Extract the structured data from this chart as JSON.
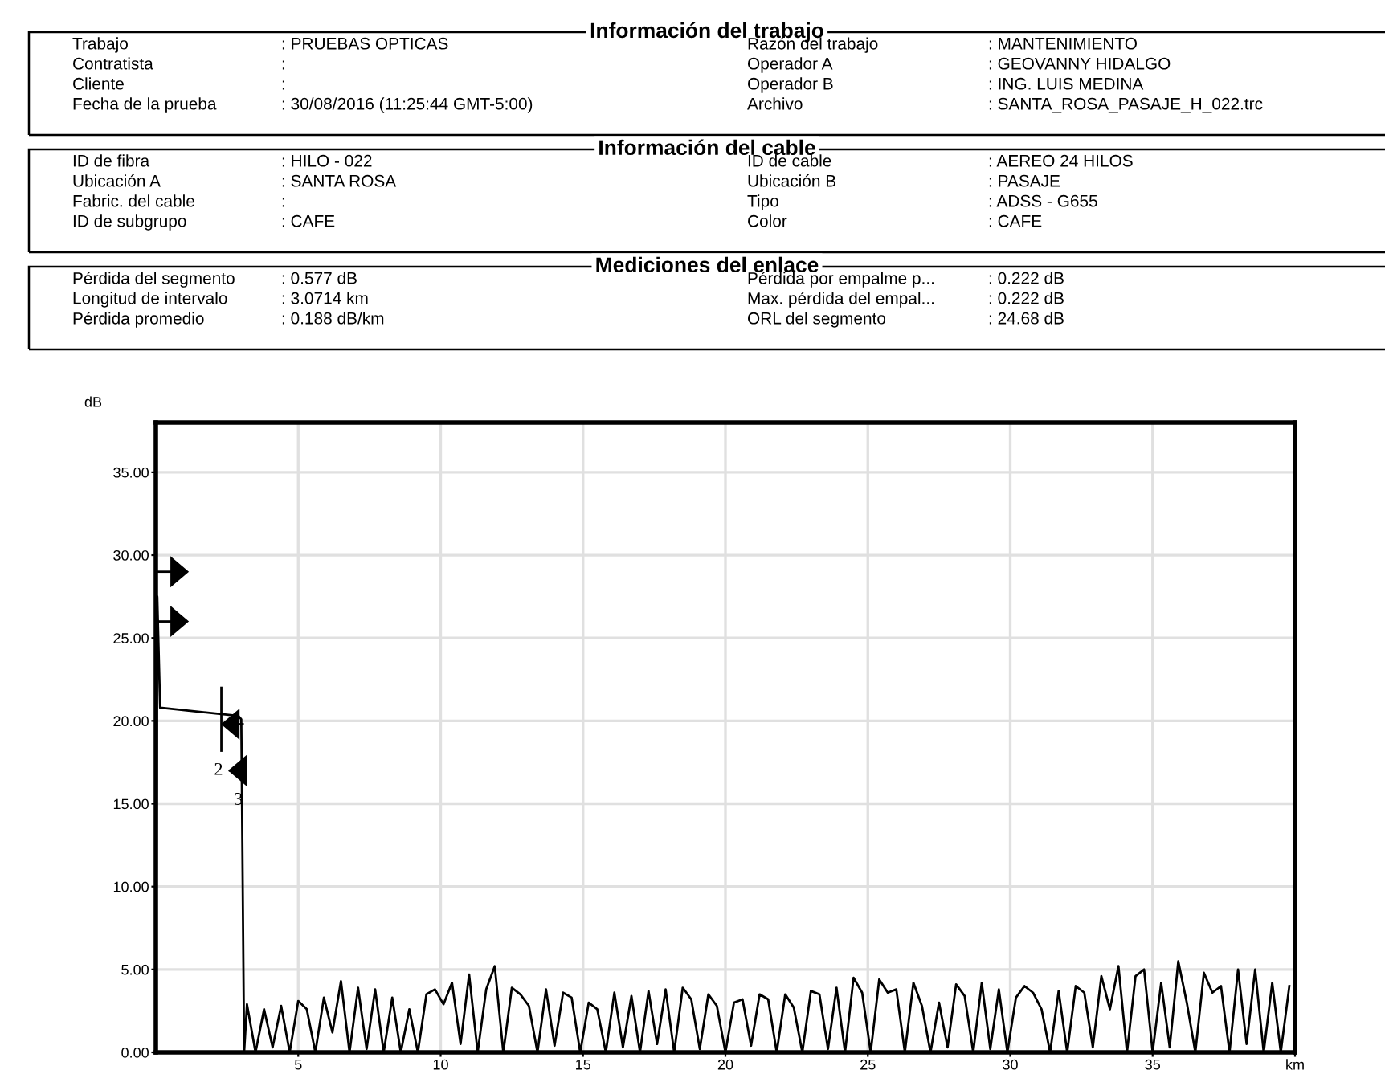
{
  "chart_data": {
    "type": "line",
    "ylabel": "dB",
    "annotations": [
      "Información del trabajo",
      "Trabajo",
      ": PRUEBAS OPTICAS",
      "Razón del trabajo",
      ": MANTENIMIENTO",
      "Contratista",
      ":",
      "Operador A",
      ": GEOVANNY HIDALGO",
      "Cliente",
      ":",
      "Operador B",
      ": ING. LUIS MEDINA",
      "Fecha de la prueba",
      ": 30/08/2016 (11:25:44 GMT-5:00)",
      "Archivo",
      ": SANTA_ROSA_PASAJE_H_022.trc",
      "Información del cable",
      "ID de fibra",
      ": HILO - 022",
      "ID de cable",
      ": AEREO 24 HILOS",
      "Ubicación A",
      ": SANTA ROSA",
      "Ubicación B",
      ": PASAJE",
      "Fabric. del cable",
      ":",
      "Tipo",
      ": ADSS - G655",
      "ID de subgrupo",
      ": CAFE",
      "Color",
      ": CAFE",
      "Mediciones del enlace",
      "Pérdida del segmento",
      ": 0.577 dB",
      "Pérdida por empalme p...",
      ": 0.222 dB",
      "Longitud de intervalo",
      ": 3.0714 km",
      "Max. pérdida del empal...",
      ": 0.222 dB",
      "Pérdida promedio",
      ": 0.188 dB/km",
      "ORL del segmento",
      ": 24.68 dB",
      "2",
      {
        "text": "3",
        "x": 2.9,
        "y": 15.2
      }
    ],
    "xlim": [
      0,
      40
    ],
    "xticks": [
      5,
      10,
      15,
      20,
      25,
      30,
      35,
      {
        "value": 40,
        "label": "km"
      }
    ],
    "ylim": [
      0,
      38
    ],
    "yticks": [
      {
        "value": 0,
        "label": "0.00"
      },
      {
        "value": 5,
        "label": "5.00"
      },
      {
        "value": 10,
        "label": "10.00"
      },
      {
        "value": 15,
        "label": "15.00"
      },
      {
        "value": 20,
        "label": "20.00"
      },
      {
        "value": 25,
        "label": "25.00"
      },
      {
        "value": 30,
        "label": "30.00"
      },
      {
        "value": 35,
        "label": "35.00"
      }
    ],
    "grid": true,
    "legend": false,
    "line_style": "solid",
    "series": [
      {
        "color": "#000000",
        "x": [
          0,
          0.05,
          0.15,
          2.9,
          3.0,
          3.1,
          3.2,
          3.5,
          3.8,
          4.1,
          4.4,
          4.7,
          5.0,
          5.3,
          5.6,
          5.9,
          6.2,
          6.5,
          6.8,
          7.1,
          7.4,
          7.7,
          8.0,
          8.3,
          8.6,
          8.9,
          9.2,
          9.5,
          9.8,
          10.1,
          10.4,
          10.7,
          11.0,
          11.3,
          11.6,
          11.9,
          12.2,
          12.5,
          12.8,
          13.1,
          13.4,
          13.7,
          14.0,
          14.3,
          14.6,
          14.9,
          15.2,
          15.5,
          15.8,
          16.1,
          16.4,
          16.7,
          17.0,
          17.3,
          17.6,
          17.9,
          18.2,
          18.5,
          18.8,
          19.1,
          19.4,
          19.7,
          20.0,
          20.3,
          20.6,
          20.9,
          21.2,
          21.5,
          21.8,
          22.1,
          22.4,
          22.7,
          23.0,
          23.3,
          23.6,
          23.9,
          24.2,
          24.5,
          24.8,
          25.1,
          25.4,
          25.7,
          26.0,
          26.3,
          26.6,
          26.9,
          27.2,
          27.5,
          27.8,
          28.1,
          28.4,
          28.7,
          29.0,
          29.3,
          29.6,
          29.9,
          30.2,
          30.5,
          30.8,
          31.1,
          31.4,
          31.7,
          32.0,
          32.3,
          32.6,
          32.9,
          33.2,
          33.5,
          33.8,
          34.1,
          34.4,
          34.7,
          35.0,
          35.3,
          35.6,
          35.9,
          36.2,
          36.5,
          36.8,
          37.1,
          37.4,
          37.7,
          38.0,
          38.3,
          38.6,
          38.9,
          39.2,
          39.5,
          39.8
        ],
        "values": [
          0,
          27.5,
          20.8,
          20.3,
          20.1,
          0,
          2.9,
          0,
          2.6,
          0.3,
          2.8,
          0,
          3.1,
          2.6,
          0,
          3.3,
          1.2,
          4.3,
          0,
          3.9,
          0.2,
          3.8,
          0,
          3.3,
          0,
          2.6,
          0,
          3.5,
          3.8,
          2.9,
          4.2,
          0.5,
          4.7,
          0,
          3.8,
          5.2,
          0,
          3.9,
          3.5,
          2.8,
          0,
          3.8,
          0.4,
          3.6,
          3.3,
          0,
          3.0,
          2.6,
          0,
          3.6,
          0.3,
          3.4,
          0,
          3.7,
          0.5,
          3.8,
          0,
          3.9,
          3.2,
          0.2,
          3.5,
          2.8,
          0,
          3.0,
          3.2,
          0.4,
          3.5,
          3.2,
          0,
          3.5,
          2.7,
          0,
          3.7,
          3.5,
          0.2,
          3.9,
          0,
          4.5,
          3.6,
          0,
          4.4,
          3.6,
          3.8,
          0,
          4.2,
          2.8,
          0,
          3.0,
          0.3,
          4.1,
          3.4,
          0,
          4.2,
          0.2,
          3.8,
          0,
          3.3,
          4.0,
          3.6,
          2.6,
          0,
          3.7,
          0,
          4.0,
          3.6,
          0.3,
          4.6,
          2.6,
          5.2,
          0,
          4.6,
          5.0,
          0,
          4.2,
          0.3,
          5.5,
          3.0,
          0,
          4.8,
          3.6,
          4.0,
          0,
          5.0,
          0.5,
          5.0,
          0,
          4.2,
          0,
          4.0
        ]
      }
    ]
  }
}
